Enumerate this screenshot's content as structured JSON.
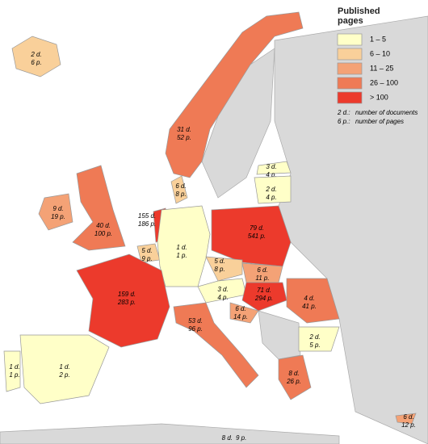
{
  "legend": {
    "title": "Published pages",
    "classes": [
      {
        "label": "1 – 5",
        "color": "#ffffc8"
      },
      {
        "label": "6 – 10",
        "color": "#f9d09a"
      },
      {
        "label": "11 – 25",
        "color": "#f4a276"
      },
      {
        "label": "26 – 100",
        "color": "#ef7a55"
      },
      {
        "label": "> 100",
        "color": "#ec3a2c"
      }
    ]
  },
  "notes": [
    {
      "key": "2 d.:",
      "text": "number of documents"
    },
    {
      "key": "6 p.:",
      "text": "number of pages"
    }
  ],
  "regions": [
    {
      "documents": "2 d.",
      "pages": "6 p.",
      "color": "#f9d09a"
    },
    {
      "documents": "31 d.",
      "pages": "52 p.",
      "color": "#ef7a55"
    },
    {
      "documents": "6 d.",
      "pages": "8 p.",
      "color": "#f9d09a"
    },
    {
      "documents": "9 d.",
      "pages": "19 p.",
      "color": "#f4a276"
    },
    {
      "documents": "40 d.",
      "pages": "100 p.",
      "color": "#ef7a55"
    },
    {
      "documents": "155 d.",
      "pages": "186 p.",
      "color": "#ec3a2c"
    },
    {
      "documents": "5 d.",
      "pages": "9 p.",
      "color": "#f9d09a"
    },
    {
      "documents": "1 d.",
      "pages": "1 p.",
      "color": "#ffffc8"
    },
    {
      "documents": "79 d.",
      "pages": "541 p.",
      "color": "#ec3a2c"
    },
    {
      "documents": "5 d.",
      "pages": "8 p.",
      "color": "#f9d09a"
    },
    {
      "documents": "6 d.",
      "pages": "11 p.",
      "color": "#f4a276"
    },
    {
      "documents": "3 d.",
      "pages": "4 p.",
      "color": "#ffffc8"
    },
    {
      "documents": "71 d.",
      "pages": "294 p.",
      "color": "#ec3a2c"
    },
    {
      "documents": "4 d.",
      "pages": "41 p.",
      "color": "#ef7a55"
    },
    {
      "documents": "6 d.",
      "pages": "14 p.",
      "color": "#f4a276"
    },
    {
      "documents": "53 d.",
      "pages": "96 p.",
      "color": "#ef7a55"
    },
    {
      "documents": "159 d.",
      "pages": "283 p.",
      "color": "#ec3a2c"
    },
    {
      "documents": "1 d.",
      "pages": "2 p.",
      "color": "#ffffc8"
    },
    {
      "documents": "1 d.",
      "pages": "1 p.",
      "color": "#ffffc8"
    },
    {
      "documents": "2 d.",
      "pages": "5 p.",
      "color": "#ffffc8"
    },
    {
      "documents": "8 d.",
      "pages": "26 p.",
      "color": "#ef7a55"
    },
    {
      "documents": "6 d.",
      "pages": "12 p.",
      "color": "#f4a276"
    },
    {
      "documents": "3 d.",
      "pages": "4 p.",
      "color": "#ffffc8"
    },
    {
      "documents": "2 d.",
      "pages": "4 p.",
      "color": "#ffffc8"
    },
    {
      "documents": "8 d.",
      "pages": "9 p."
    }
  ]
}
